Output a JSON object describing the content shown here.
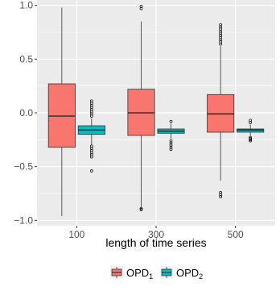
{
  "chart_data": {
    "type": "boxplot",
    "xlabel": "length of time series",
    "ylabel": "",
    "categories": [
      "100",
      "300",
      "500"
    ],
    "ylim": [
      -1.05,
      1.05
    ],
    "yticks": [
      -1.0,
      -0.5,
      0.0,
      0.5,
      1.0
    ],
    "ytick_labels": [
      "−1.0",
      "−0.5",
      "0.0",
      "0.5",
      "1.0"
    ],
    "grid": true,
    "legend_position": "bottom",
    "series": [
      {
        "legend_main": "OPD",
        "legend_sub": "1",
        "color": "#F8766D",
        "boxes": [
          {
            "category": "100",
            "whisker_low": -0.96,
            "q1": -0.32,
            "median": -0.03,
            "q3": 0.27,
            "whisker_high": 0.98,
            "outliers": []
          },
          {
            "category": "300",
            "whisker_low": -0.88,
            "q1": -0.21,
            "median": 0.0,
            "q3": 0.22,
            "whisker_high": 0.85,
            "outliers": [
              -0.89,
              -0.9,
              0.97,
              0.99
            ]
          },
          {
            "category": "500",
            "whisker_low": -0.63,
            "q1": -0.18,
            "median": -0.01,
            "q3": 0.17,
            "whisker_high": 0.62,
            "outliers": [
              -0.74,
              -0.76,
              -0.78,
              0.64,
              0.66,
              0.68,
              0.7,
              0.72,
              0.74,
              0.76,
              0.78,
              0.8,
              0.82
            ]
          }
        ]
      },
      {
        "legend_main": "OPD",
        "legend_sub": "2",
        "color": "#00BFC4",
        "boxes": [
          {
            "category": "100",
            "whisker_low": -0.3,
            "q1": -0.2,
            "median": -0.16,
            "q3": -0.12,
            "whisker_high": -0.05,
            "outliers": [
              -0.31,
              -0.33,
              -0.35,
              -0.37,
              -0.39,
              -0.41,
              -0.54,
              -0.03,
              -0.01,
              0.01,
              0.03,
              0.05,
              0.07,
              0.09,
              0.11
            ]
          },
          {
            "category": "300",
            "whisker_low": -0.24,
            "q1": -0.19,
            "median": -0.17,
            "q3": -0.15,
            "whisker_high": -0.1,
            "outliers": [
              -0.26,
              -0.28,
              -0.3,
              -0.32,
              -0.34,
              -0.08
            ]
          },
          {
            "category": "500",
            "whisker_low": -0.22,
            "q1": -0.18,
            "median": -0.16,
            "q3": -0.15,
            "whisker_high": -0.11,
            "outliers": [
              -0.23,
              -0.24,
              -0.25,
              -0.26,
              -0.09,
              -0.07
            ]
          }
        ]
      }
    ]
  }
}
